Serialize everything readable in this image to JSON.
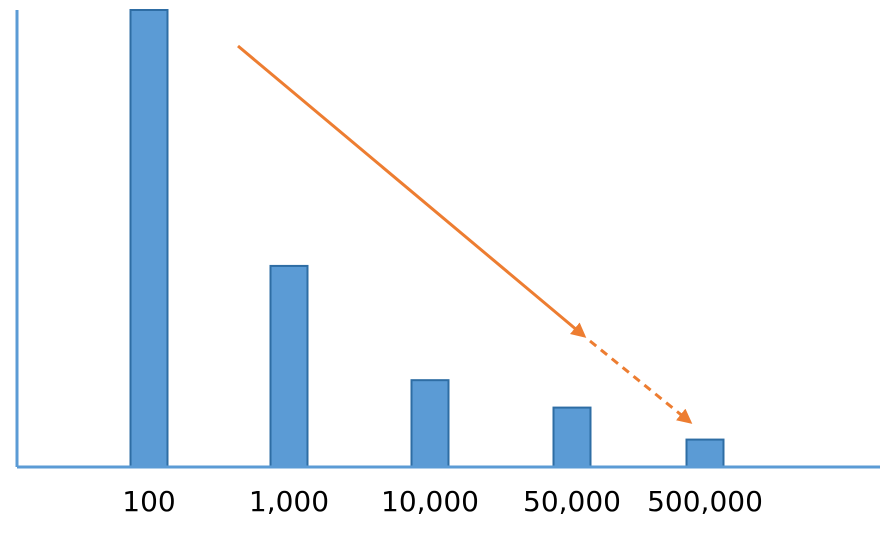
{
  "chart_data": {
    "type": "bar",
    "title": "",
    "xlabel": "",
    "ylabel": "",
    "categories": [
      "100",
      "1,000",
      "10,000",
      "50,000",
      "500,000"
    ],
    "values": [
      100,
      44,
      19,
      13,
      6
    ],
    "ylim": [
      0,
      100
    ],
    "grid": false,
    "y_tick_labels_shown": false,
    "legend": "none",
    "annotations": [
      {
        "kind": "trend-arrow",
        "style": "solid",
        "direction": "decreasing",
        "from_category": "100",
        "to_category": "50,000"
      },
      {
        "kind": "trend-arrow",
        "style": "dashed",
        "direction": "decreasing",
        "from_category": "50,000",
        "to_category": "500,000"
      }
    ],
    "colors": {
      "bar_fill": "#5b9bd5",
      "bar_stroke": "#2e6da4",
      "axis": "#5b9bd5",
      "arrow": "#ed7d31"
    }
  }
}
